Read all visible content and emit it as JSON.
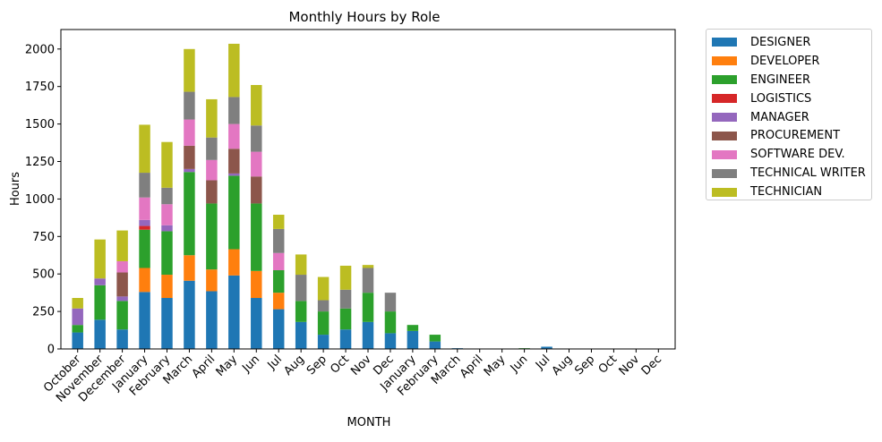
{
  "chart_data": {
    "type": "bar",
    "stacked": true,
    "title": "Monthly Hours by Role",
    "xlabel": "MONTH",
    "ylabel": "Hours",
    "ylim": [
      0,
      2130
    ],
    "yticks": [
      "0",
      "250",
      "500",
      "750",
      "1000",
      "1250",
      "1500",
      "1750",
      "2000"
    ],
    "grid": false,
    "legend_position": "outside-top-right",
    "categories": [
      "October",
      "November",
      "December",
      "January",
      "February",
      "March",
      "April",
      "May",
      "Jun",
      "Jul",
      "Aug",
      "Sep",
      "Oct",
      "Nov",
      "Dec",
      "January",
      "February",
      "March",
      "April",
      "May",
      "Jun",
      "Jul",
      "Aug",
      "Sep",
      "Oct",
      "Nov",
      "Dec"
    ],
    "series": [
      {
        "name": "DESIGNER",
        "color": "#1f77b4",
        "values": [
          110,
          195,
          130,
          380,
          340,
          455,
          385,
          490,
          340,
          265,
          180,
          95,
          130,
          180,
          105,
          120,
          50,
          5,
          0,
          0,
          0,
          15,
          0,
          0,
          0,
          0,
          0
        ]
      },
      {
        "name": "DEVELOPER",
        "color": "#ff7f0e",
        "values": [
          0,
          0,
          0,
          160,
          155,
          170,
          145,
          175,
          180,
          110,
          0,
          0,
          0,
          0,
          0,
          0,
          0,
          0,
          0,
          0,
          0,
          0,
          0,
          0,
          0,
          0,
          0
        ]
      },
      {
        "name": "ENGINEER",
        "color": "#2ca02c",
        "values": [
          50,
          230,
          190,
          255,
          290,
          555,
          440,
          490,
          450,
          150,
          140,
          155,
          140,
          195,
          145,
          40,
          45,
          0,
          0,
          0,
          5,
          0,
          0,
          0,
          0,
          0,
          0
        ]
      },
      {
        "name": "LOGISTICS",
        "color": "#d62728",
        "values": [
          0,
          0,
          0,
          25,
          0,
          0,
          0,
          0,
          0,
          0,
          0,
          0,
          0,
          0,
          0,
          0,
          0,
          0,
          0,
          0,
          0,
          0,
          0,
          0,
          0,
          0,
          0
        ]
      },
      {
        "name": "MANAGER",
        "color": "#9467bd",
        "values": [
          110,
          45,
          30,
          40,
          40,
          20,
          0,
          15,
          0,
          0,
          0,
          0,
          0,
          0,
          0,
          0,
          0,
          0,
          0,
          0,
          0,
          0,
          0,
          0,
          0,
          0,
          0
        ]
      },
      {
        "name": "PROCUREMENT",
        "color": "#8c564b",
        "values": [
          0,
          0,
          160,
          0,
          0,
          155,
          155,
          165,
          180,
          0,
          0,
          0,
          0,
          0,
          0,
          0,
          0,
          0,
          0,
          0,
          0,
          0,
          0,
          0,
          0,
          0,
          0
        ]
      },
      {
        "name": "SOFTWARE DEV.",
        "color": "#e377c2",
        "values": [
          0,
          0,
          75,
          150,
          140,
          175,
          135,
          165,
          165,
          115,
          0,
          0,
          0,
          0,
          0,
          0,
          0,
          0,
          0,
          0,
          0,
          0,
          0,
          0,
          0,
          0,
          0
        ]
      },
      {
        "name": "TECHNICAL WRITER",
        "color": "#7f7f7f",
        "values": [
          0,
          0,
          0,
          165,
          110,
          185,
          150,
          180,
          175,
          160,
          175,
          75,
          125,
          165,
          125,
          0,
          0,
          0,
          0,
          0,
          0,
          0,
          0,
          0,
          0,
          0,
          0
        ]
      },
      {
        "name": "TECHNICIAN",
        "color": "#bcbd22",
        "values": [
          70,
          260,
          205,
          320,
          305,
          285,
          255,
          355,
          270,
          95,
          135,
          155,
          160,
          20,
          0,
          0,
          0,
          0,
          0,
          0,
          0,
          0,
          0,
          0,
          0,
          0,
          0
        ]
      }
    ]
  }
}
